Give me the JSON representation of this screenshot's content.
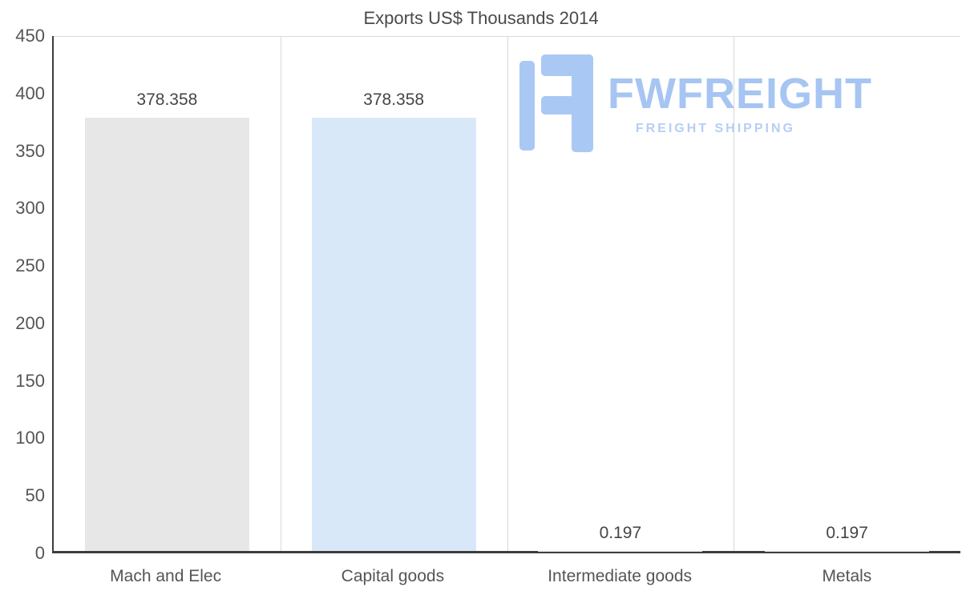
{
  "chart_data": {
    "type": "bar",
    "title": "Exports US$ Thousands 2014",
    "categories": [
      "Mach and Elec",
      "Capital goods",
      "Intermediate goods",
      "Metals"
    ],
    "values": [
      378.358,
      378.358,
      0.197,
      0.197
    ],
    "value_labels": [
      "378.358",
      "378.358",
      "0.197",
      "0.197"
    ],
    "bar_colors": [
      "#e7e7e7",
      "#d9e8f9",
      "#d9e8f9",
      "#d9e8f9"
    ],
    "ylim": [
      0,
      450
    ],
    "yticks": [
      0,
      50,
      100,
      150,
      200,
      250,
      300,
      350,
      400,
      450
    ],
    "grid": "vertical-category-boundaries",
    "legend": "none",
    "xlabel": "",
    "ylabel": ""
  },
  "watermark": {
    "brand": "FWFREIGHT",
    "tagline": "FREIGHT SHIPPING",
    "logo_color": "#aac8f4"
  },
  "colors": {
    "bar_gray": "#e7e7e7",
    "bar_blue": "#d9e8f9",
    "axis_line": "#3e3e3e",
    "gridline": "#d9d9d9",
    "text": "#4a4a4a",
    "tick_text": "#555555",
    "watermark_blue": "#a6c5f2"
  }
}
